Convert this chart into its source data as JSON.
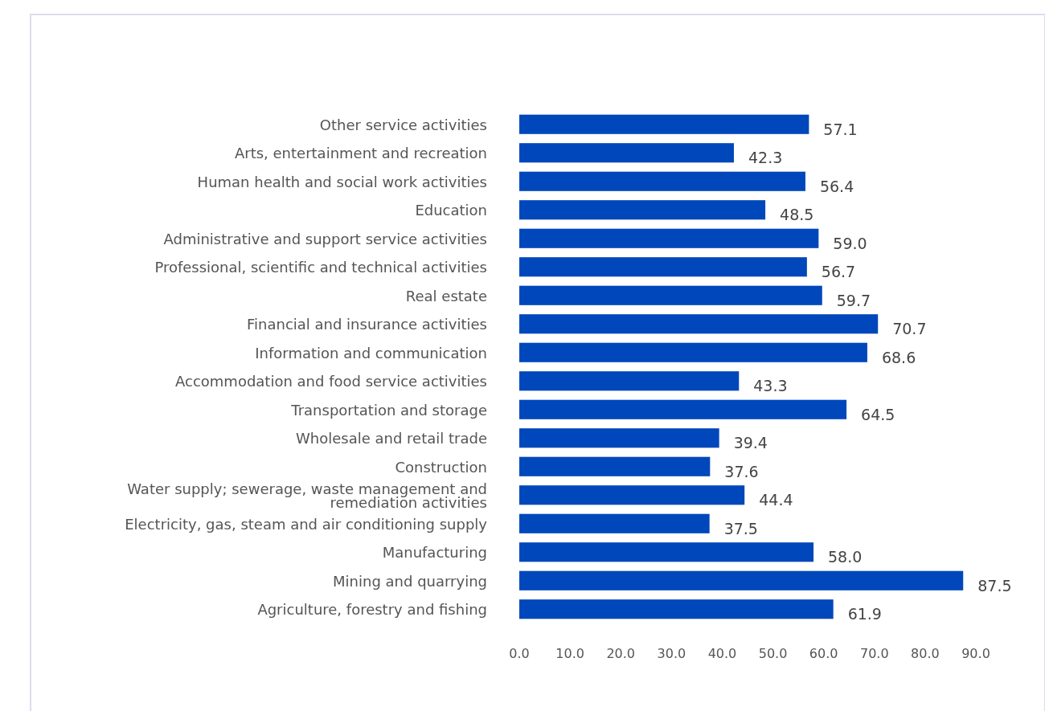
{
  "chart_data": {
    "type": "bar",
    "orientation": "horizontal",
    "categories": [
      "Other service activities",
      "Arts, entertainment and recreation",
      "Human health and social work activities",
      "Education",
      "Administrative and support service activities",
      "Professional, scientific and technical activities",
      "Real estate",
      "Financial and insurance activities",
      "Information and communication",
      "Accommodation and food service activities",
      "Transportation and storage",
      "Wholesale and retail trade",
      "Construction",
      "Water supply; sewerage, waste management and remediation activities",
      "Electricity, gas, steam and air conditioning supply",
      "Manufacturing",
      "Mining and quarrying",
      "Agriculture, forestry and fishing"
    ],
    "values": [
      57.1,
      42.3,
      56.4,
      48.5,
      59.0,
      56.7,
      59.7,
      70.7,
      68.6,
      43.3,
      64.5,
      39.4,
      37.6,
      44.4,
      37.5,
      58.0,
      87.5,
      61.9
    ],
    "value_labels": [
      "57.1",
      "42.3",
      "56.4",
      "48.5",
      "59.0",
      "56.7",
      "59.7",
      "70.7",
      "68.6",
      "43.3",
      "64.5",
      "39.4",
      "37.6",
      "44.4",
      "37.5",
      "58.0",
      "87.5",
      "61.9"
    ],
    "color": "#0047bb",
    "xlim": [
      0,
      90
    ],
    "xticks": [
      {
        "value": 0,
        "label": "0.0"
      },
      {
        "value": 10,
        "label": "10.0"
      },
      {
        "value": 20,
        "label": "20.0"
      },
      {
        "value": 30,
        "label": "30.0"
      },
      {
        "value": 40,
        "label": "40.0"
      },
      {
        "value": 50,
        "label": "50.0"
      },
      {
        "value": 60,
        "label": "60.0"
      },
      {
        "value": 70,
        "label": "70.0"
      },
      {
        "value": 80,
        "label": "80.0"
      },
      {
        "value": 90,
        "label": "90.0"
      }
    ],
    "grid": false
  }
}
